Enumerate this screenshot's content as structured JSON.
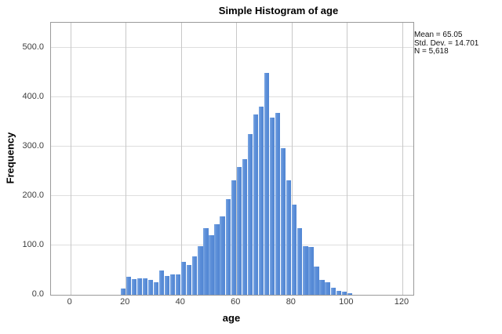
{
  "title": "Simple Histogram of age",
  "stats_box": {
    "lines": [
      "Mean = 65.05",
      "Std. Dev. = 14.701",
      "N = 5,618"
    ]
  },
  "chart_data": {
    "type": "bar",
    "subtype": "histogram",
    "title": "Simple Histogram of age",
    "xlabel": "age",
    "ylabel": "Frequency",
    "grid": true,
    "legend_position": "none",
    "bar_color": "#5b8ed8",
    "xlim": [
      -7,
      124
    ],
    "ylim": [
      0,
      550
    ],
    "x_ticks": [
      0,
      20,
      40,
      60,
      80,
      100,
      120
    ],
    "y_ticks": [
      0,
      100,
      200,
      300,
      400,
      500
    ],
    "y_tick_labels": [
      "0.0",
      "100.0",
      "200.0",
      "300.0",
      "400.0",
      "500.0"
    ],
    "bin_start": 18,
    "bin_width": 2,
    "categories": [
      "18-20",
      "20-22",
      "22-24",
      "24-26",
      "26-28",
      "28-30",
      "30-32",
      "32-34",
      "34-36",
      "36-38",
      "38-40",
      "40-42",
      "42-44",
      "44-46",
      "46-48",
      "48-50",
      "50-52",
      "52-54",
      "54-56",
      "56-58",
      "58-60",
      "60-62",
      "62-64",
      "64-66",
      "66-68",
      "68-70",
      "70-72",
      "72-74",
      "74-76",
      "76-78",
      "78-80",
      "80-82",
      "82-84",
      "84-86",
      "86-88",
      "88-90",
      "90-92",
      "92-94",
      "94-96",
      "96-98",
      "98-100",
      "100-102"
    ],
    "values": [
      12,
      36,
      31,
      34,
      34,
      30,
      26,
      49,
      38,
      42,
      42,
      66,
      60,
      78,
      98,
      134,
      121,
      143,
      159,
      194,
      231,
      258,
      274,
      325,
      364,
      381,
      448,
      359,
      368,
      296,
      231,
      183,
      135,
      98,
      96,
      57,
      30,
      25,
      15,
      8,
      6,
      3
    ],
    "stats": {
      "mean": 65.05,
      "std_dev": 14.701,
      "n": "5,618"
    }
  }
}
